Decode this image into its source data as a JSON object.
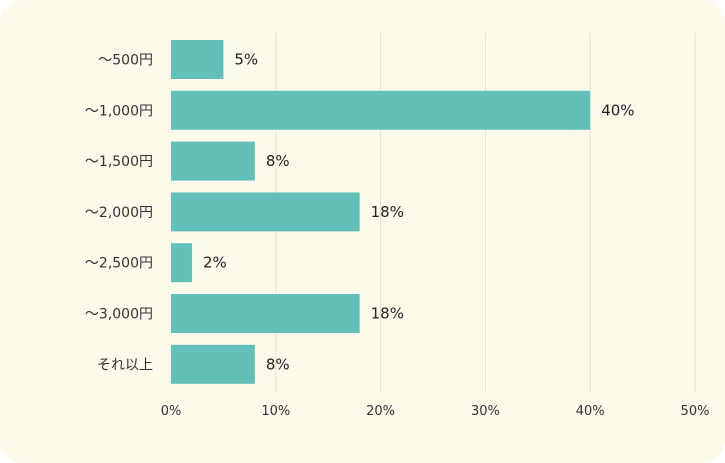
{
  "chart_data": {
    "type": "bar",
    "orientation": "horizontal",
    "categories": [
      "～500円",
      "～1,000円",
      "～1,500円",
      "～2,000円",
      "～2,500円",
      "～3,000円",
      "それ以上"
    ],
    "values": [
      5,
      40,
      8,
      18,
      2,
      18,
      8
    ],
    "value_labels": [
      "5%",
      "40%",
      "8%",
      "18%",
      "2%",
      "18%",
      "8%"
    ],
    "x_ticks": [
      "0%",
      "10%",
      "20%",
      "30%",
      "40%",
      "50%"
    ],
    "xlim": [
      0,
      50
    ],
    "grid": true,
    "title": "",
    "xlabel": "",
    "ylabel": "",
    "colors": {
      "bar": "#62c0b8",
      "background": "#fdfaec",
      "grid": "#e6e1cf"
    }
  }
}
